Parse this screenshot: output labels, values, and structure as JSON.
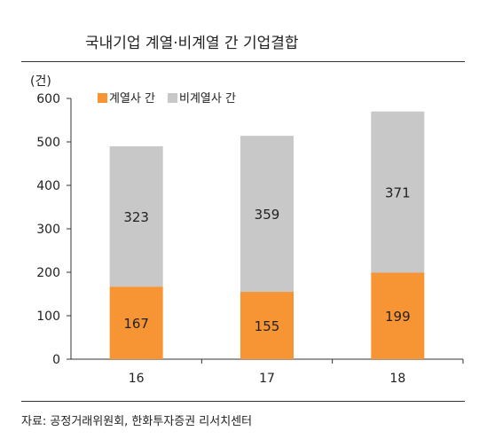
{
  "title": "국내기업 계열·비계열 간 기업결합",
  "source": "자료: 공정거래위원회, 한화투자증권 리서치센터",
  "chart_data": {
    "type": "bar",
    "stacked": true,
    "title": "국내기업 계열·비계열 간 기업결합",
    "unit_label": "(건)",
    "xlabel": "",
    "ylabel": "",
    "categories": [
      "16",
      "17",
      "18"
    ],
    "series": [
      {
        "name": "계열사 간",
        "values": [
          167,
          155,
          199
        ],
        "color": "#f79433"
      },
      {
        "name": "비계열사 간",
        "values": [
          323,
          359,
          371
        ],
        "color": "#c8c8c8"
      }
    ],
    "ylim": [
      0,
      600
    ],
    "yticks": [
      0,
      100,
      200,
      300,
      400,
      500,
      600
    ],
    "legend_position": "top-left",
    "grid": false
  }
}
